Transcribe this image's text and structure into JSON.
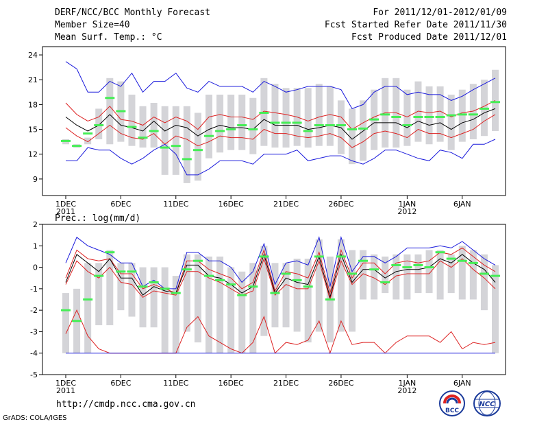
{
  "header": {
    "title": "DERF/NCC/BCC Monthly Forecast",
    "member_size": "Member Size=40",
    "variable": "Mean Surf. Temp.: °C",
    "period": "For 2011/12/01-2012/01/09",
    "fcst_started": "Fcst Started Refer Date 2011/11/30",
    "fcst_produced": "Fcst Produced Date 2011/12/01"
  },
  "footer": {
    "url": "http://cmdp.ncc.cma.gov.cn",
    "grads": "GrADS: COLA/IGES",
    "logo_left": "BCC",
    "logo_right": "NCC"
  },
  "colors": {
    "box": "#d4d4d8",
    "obs": "#44ee55",
    "mean": "#000000",
    "inner": "#dd2222",
    "outer": "#1a1adc"
  },
  "chart_data": [
    {
      "type": "line",
      "title": "Mean Surf. Temp.: °C",
      "x": [
        "1DEC",
        "2DEC",
        "3DEC",
        "4DEC",
        "5DEC",
        "6DEC",
        "7DEC",
        "8DEC",
        "9DEC",
        "10DEC",
        "11DEC",
        "12DEC",
        "13DEC",
        "14DEC",
        "15DEC",
        "16DEC",
        "17DEC",
        "18DEC",
        "19DEC",
        "20DEC",
        "21DEC",
        "22DEC",
        "23DEC",
        "24DEC",
        "25DEC",
        "26DEC",
        "27DEC",
        "28DEC",
        "29DEC",
        "30DEC",
        "31DEC",
        "1JAN",
        "2JAN",
        "3JAN",
        "4JAN",
        "5JAN",
        "6JAN",
        "7JAN",
        "8JAN",
        "9JAN"
      ],
      "xticks": [
        "1DEC",
        "6DEC",
        "11DEC",
        "16DEC",
        "21DEC",
        "26DEC",
        "1JAN",
        "6JAN"
      ],
      "year_labels": [
        {
          "at": "1DEC",
          "label": "2011"
        },
        {
          "at": "1JAN",
          "label": "2012"
        }
      ],
      "ylim": [
        7,
        25
      ],
      "yticks": [
        9,
        12,
        15,
        18,
        21,
        24
      ],
      "series": [
        {
          "name": "max",
          "values": [
            23.2,
            22.3,
            19.5,
            19.5,
            20.8,
            20.2,
            21.8,
            19.5,
            20.8,
            20.8,
            21.8,
            20.0,
            19.5,
            20.8,
            20.2,
            20.2,
            20.2,
            19.5,
            20.8,
            20.2,
            19.5,
            19.8,
            20.2,
            20.2,
            20.2,
            19.8,
            17.5,
            18.0,
            19.5,
            20.2,
            20.2,
            19.2,
            19.5,
            19.2,
            19.2,
            18.5,
            19.0,
            19.8,
            20.5,
            21.2
          ]
        },
        {
          "name": "p90",
          "values": [
            18.2,
            16.8,
            16.0,
            16.5,
            17.8,
            16.2,
            16.0,
            15.5,
            16.5,
            15.8,
            16.5,
            16.0,
            15.0,
            16.5,
            16.8,
            16.5,
            16.5,
            16.2,
            17.2,
            17.0,
            16.8,
            16.5,
            16.0,
            16.5,
            16.8,
            16.5,
            15.0,
            15.8,
            16.5,
            17.0,
            17.0,
            16.5,
            17.2,
            17.0,
            17.2,
            16.5,
            17.0,
            17.2,
            17.8,
            18.5
          ]
        },
        {
          "name": "mean",
          "values": [
            16.5,
            15.5,
            14.8,
            15.5,
            16.8,
            15.5,
            15.2,
            14.8,
            16.0,
            14.8,
            15.5,
            15.2,
            14.2,
            15.0,
            15.5,
            15.2,
            15.2,
            15.0,
            16.2,
            15.5,
            15.5,
            15.5,
            15.0,
            15.2,
            15.5,
            15.2,
            13.8,
            14.8,
            15.8,
            15.8,
            15.8,
            15.2,
            16.0,
            15.5,
            15.8,
            15.0,
            15.8,
            16.2,
            17.0,
            17.5
          ]
        },
        {
          "name": "p10",
          "values": [
            15.2,
            14.2,
            13.5,
            14.5,
            15.5,
            14.5,
            14.0,
            13.8,
            14.5,
            13.2,
            14.2,
            13.8,
            13.0,
            13.5,
            14.2,
            14.0,
            14.0,
            13.8,
            15.0,
            14.5,
            14.5,
            14.2,
            14.0,
            14.2,
            14.5,
            14.0,
            12.8,
            13.5,
            14.5,
            14.8,
            14.5,
            14.0,
            15.0,
            14.5,
            14.5,
            14.0,
            14.5,
            15.0,
            16.0,
            16.8
          ]
        },
        {
          "name": "min",
          "values": [
            11.2,
            11.2,
            12.8,
            12.5,
            12.5,
            11.5,
            10.8,
            11.5,
            12.5,
            13.2,
            12.0,
            9.5,
            9.5,
            10.2,
            11.2,
            11.2,
            11.2,
            10.8,
            12.0,
            12.0,
            12.0,
            12.5,
            11.2,
            11.5,
            11.8,
            11.8,
            11.2,
            10.8,
            11.5,
            12.5,
            12.5,
            12.0,
            11.5,
            11.2,
            12.5,
            12.2,
            11.5,
            13.2,
            13.2,
            13.8
          ]
        },
        {
          "name": "obs",
          "values": [
            13.6,
            13.0,
            14.5,
            15.5,
            18.8,
            17.2,
            15.3,
            14.0,
            14.8,
            12.8,
            13.0,
            11.4,
            12.5,
            14.2,
            14.8,
            15.0,
            15.5,
            15.0,
            17.0,
            15.8,
            15.8,
            15.8,
            14.8,
            15.5,
            15.5,
            15.5,
            15.0,
            15.1,
            16.2,
            16.8,
            16.5,
            15.5,
            16.5,
            16.5,
            16.5,
            16.7,
            16.8,
            16.8,
            17.5,
            18.3
          ]
        }
      ],
      "boxes": {
        "high": [
          13.8,
          13.2,
          14.0,
          17.5,
          21.2,
          20.8,
          19.2,
          17.8,
          18.2,
          17.8,
          17.8,
          17.8,
          17.0,
          19.2,
          19.2,
          19.2,
          19.2,
          18.8,
          21.2,
          20.5,
          20.0,
          20.0,
          20.0,
          20.5,
          20.2,
          18.5,
          17.5,
          18.5,
          19.8,
          21.2,
          21.2,
          19.8,
          20.8,
          20.2,
          20.2,
          19.2,
          19.8,
          20.5,
          21.0,
          22.2
        ],
        "low": [
          13.2,
          12.8,
          13.2,
          13.8,
          13.2,
          13.5,
          13.0,
          12.8,
          12.8,
          9.5,
          9.5,
          8.5,
          8.8,
          11.5,
          12.2,
          12.5,
          12.5,
          12.0,
          13.0,
          12.8,
          12.8,
          13.0,
          12.8,
          13.0,
          13.0,
          12.0,
          10.8,
          11.2,
          12.5,
          12.8,
          12.8,
          13.0,
          13.5,
          13.2,
          13.5,
          12.5,
          13.5,
          13.8,
          14.2,
          14.8
        ]
      }
    },
    {
      "type": "line",
      "title": "Prec.: log(mm/d)",
      "x": [
        "1DEC",
        "2DEC",
        "3DEC",
        "4DEC",
        "5DEC",
        "6DEC",
        "7DEC",
        "8DEC",
        "9DEC",
        "10DEC",
        "11DEC",
        "12DEC",
        "13DEC",
        "14DEC",
        "15DEC",
        "16DEC",
        "17DEC",
        "18DEC",
        "19DEC",
        "20DEC",
        "21DEC",
        "22DEC",
        "23DEC",
        "24DEC",
        "25DEC",
        "26DEC",
        "27DEC",
        "28DEC",
        "29DEC",
        "30DEC",
        "31DEC",
        "1JAN",
        "2JAN",
        "3JAN",
        "4JAN",
        "5JAN",
        "6JAN",
        "7JAN",
        "8JAN",
        "9JAN"
      ],
      "xticks": [
        "1DEC",
        "6DEC",
        "11DEC",
        "16DEC",
        "21DEC",
        "26DEC",
        "1JAN",
        "6JAN"
      ],
      "year_labels": [
        {
          "at": "1DEC",
          "label": "2011"
        },
        {
          "at": "1JAN",
          "label": "2012"
        }
      ],
      "ylim": [
        -5,
        2
      ],
      "yticks": [
        -5,
        -4,
        -3,
        -2,
        -1,
        0,
        1,
        2
      ],
      "series": [
        {
          "name": "max",
          "values": [
            0.2,
            1.4,
            1.0,
            0.8,
            0.6,
            0.2,
            0.2,
            -0.9,
            -0.6,
            -1.0,
            -1.0,
            0.7,
            0.7,
            0.3,
            0.3,
            0.0,
            -0.7,
            -0.2,
            1.1,
            -0.8,
            0.2,
            0.3,
            0.1,
            1.4,
            -0.9,
            1.4,
            -0.2,
            0.5,
            0.5,
            0.2,
            0.5,
            0.9,
            0.9,
            0.9,
            1.0,
            0.9,
            1.2,
            0.8,
            0.4,
            0.1
          ]
        },
        {
          "name": "p90",
          "values": [
            -0.5,
            0.8,
            0.4,
            0.3,
            0.4,
            -0.3,
            -0.3,
            -1.0,
            -0.8,
            -1.0,
            -1.2,
            0.3,
            0.3,
            -0.1,
            -0.3,
            -0.5,
            -1.0,
            -0.7,
            0.8,
            -1.1,
            -0.2,
            -0.3,
            -0.5,
            0.7,
            -1.2,
            0.8,
            -0.5,
            0.2,
            0.2,
            -0.3,
            0.2,
            0.3,
            0.2,
            0.3,
            0.7,
            0.6,
            0.9,
            0.5,
            0.1,
            -0.2
          ]
        },
        {
          "name": "mean",
          "values": [
            -0.7,
            0.6,
            0.2,
            -0.2,
            0.4,
            -0.5,
            -0.5,
            -1.3,
            -0.9,
            -1.1,
            -1.2,
            0.1,
            0.1,
            -0.4,
            -0.5,
            -0.8,
            -1.2,
            -0.9,
            0.6,
            -1.2,
            -0.5,
            -0.7,
            -0.8,
            0.5,
            -1.4,
            0.6,
            -0.7,
            -0.1,
            -0.1,
            -0.5,
            -0.2,
            -0.1,
            -0.1,
            0.0,
            0.4,
            0.2,
            0.6,
            0.2,
            -0.1,
            -0.7
          ]
        },
        {
          "name": "p10",
          "values": [
            -0.8,
            0.3,
            -0.2,
            -0.5,
            0.0,
            -0.7,
            -0.8,
            -1.4,
            -1.1,
            -1.2,
            -1.3,
            -0.2,
            -0.2,
            -0.5,
            -0.7,
            -1.0,
            -1.3,
            -1.1,
            0.4,
            -1.3,
            -0.8,
            -1.0,
            -1.0,
            0.3,
            -1.5,
            0.3,
            -0.8,
            -0.3,
            -0.5,
            -0.8,
            -0.4,
            -0.3,
            -0.3,
            -0.3,
            0.3,
            0.0,
            0.4,
            -0.1,
            -0.5,
            -1.0
          ]
        },
        {
          "name": "p2",
          "values": [
            -3.1,
            -2.0,
            -3.2,
            -3.8,
            -4.0,
            -4.0,
            -4.0,
            -4.0,
            -4.0,
            -4.0,
            -4.0,
            -2.8,
            -2.3,
            -3.2,
            -3.5,
            -3.8,
            -4.0,
            -3.5,
            -2.3,
            -4.0,
            -3.5,
            -3.6,
            -3.4,
            -2.5,
            -4.0,
            -2.5,
            -3.6,
            -3.5,
            -3.5,
            -4.0,
            -3.5,
            -3.2,
            -3.2,
            -3.2,
            -3.5,
            -3.0,
            -3.8,
            -3.5,
            -3.6,
            -3.5
          ]
        },
        {
          "name": "min",
          "values": [
            -4,
            -4,
            -4,
            -4,
            -4,
            -4,
            -4,
            -4,
            -4,
            -4,
            -4,
            -4,
            -4,
            -4,
            -4,
            -4,
            -4,
            -4,
            -4,
            -4,
            -4,
            -4,
            -4,
            -4,
            -4,
            -4,
            -4,
            -4,
            -4,
            -4,
            -4,
            -4,
            -4,
            -4,
            -4,
            -4,
            -4,
            -4,
            -4,
            -4
          ]
        },
        {
          "name": "obs",
          "values": [
            -2.0,
            -2.5,
            -1.5,
            -0.4,
            0.7,
            -0.2,
            -0.2,
            -0.9,
            -0.7,
            -1.0,
            -1.2,
            -0.1,
            0.3,
            -0.4,
            -0.6,
            -0.8,
            -1.3,
            -0.9,
            0.5,
            -1.2,
            -0.3,
            -0.6,
            -0.9,
            0.5,
            -1.5,
            0.5,
            -0.3,
            0.3,
            -0.1,
            -0.7,
            0.1,
            0.0,
            0.1,
            0.0,
            0.7,
            0.4,
            0.3,
            0.2,
            -0.3,
            -0.4
          ]
        }
      ],
      "boxes": {
        "high": [
          -1.2,
          -1.0,
          0.2,
          0.2,
          0.8,
          0.2,
          0.2,
          0.0,
          0.0,
          0.0,
          -0.4,
          0.6,
          0.6,
          0.5,
          0.5,
          0.0,
          -0.2,
          0.2,
          1.0,
          0.2,
          0.2,
          0.4,
          0.4,
          1.3,
          0.5,
          1.3,
          0.8,
          0.8,
          0.6,
          0.5,
          0.6,
          0.6,
          0.6,
          0.8,
          0.8,
          0.6,
          1.0,
          0.8,
          0.6,
          0.1
        ],
        "low": [
          -4,
          -4,
          -4,
          -2.7,
          -2.7,
          -2.0,
          -2.3,
          -2.8,
          -2.8,
          -4,
          -4,
          -3.0,
          -3.5,
          -4,
          -4,
          -4,
          -4,
          -4,
          -3.2,
          -2.8,
          -2.8,
          -3.0,
          -3.5,
          -3.0,
          -3.5,
          -3.0,
          -3.0,
          -1.5,
          -1.5,
          -1.2,
          -1.5,
          -1.5,
          -1.2,
          -1.2,
          -1.5,
          -1.2,
          -1.5,
          -1.5,
          -2.0,
          -4
        ]
      }
    }
  ]
}
